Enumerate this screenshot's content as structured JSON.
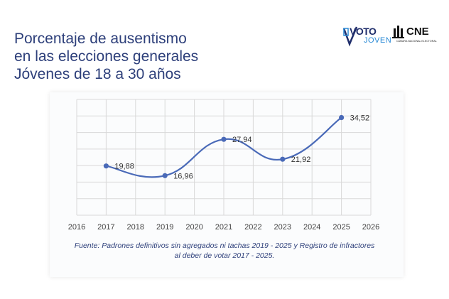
{
  "title_lines": [
    "Porcentaje de ausentismo",
    "en las elecciones generales",
    "Jóvenes de 18 a 30 años"
  ],
  "logos": {
    "voto_joven": {
      "word": "VOTO",
      "sub": "JOVEN"
    },
    "cne": {
      "word": "CNE",
      "sub": "CÁMARA NACIONAL ELECTORAL"
    }
  },
  "source_lines": [
    "Fuente: Padrones definitivos sin agregados ni tachas 2019 - 2025 y Registro de infractores",
    "al deber de votar 2017 - 2025."
  ],
  "colors": {
    "title": "#2d3f7a",
    "line": "#4a6ab8",
    "grid": "#d9d9d9"
  },
  "chart_data": {
    "type": "line",
    "x": [
      2017,
      2019,
      2021,
      2023,
      2025
    ],
    "y": [
      19.88,
      16.96,
      27.94,
      21.92,
      34.52
    ],
    "labels": [
      "19,88",
      "16,96",
      "27,94",
      "21,92",
      "34,52"
    ],
    "xticks": [
      "2016",
      "2017",
      "2018",
      "2019",
      "2020",
      "2021",
      "2022",
      "2023",
      "2024",
      "2025",
      "2026"
    ],
    "xlim": [
      2016,
      2026
    ],
    "ylim": [
      5,
      40
    ],
    "grid": true,
    "smooth": true,
    "ylabel_visible": false
  }
}
